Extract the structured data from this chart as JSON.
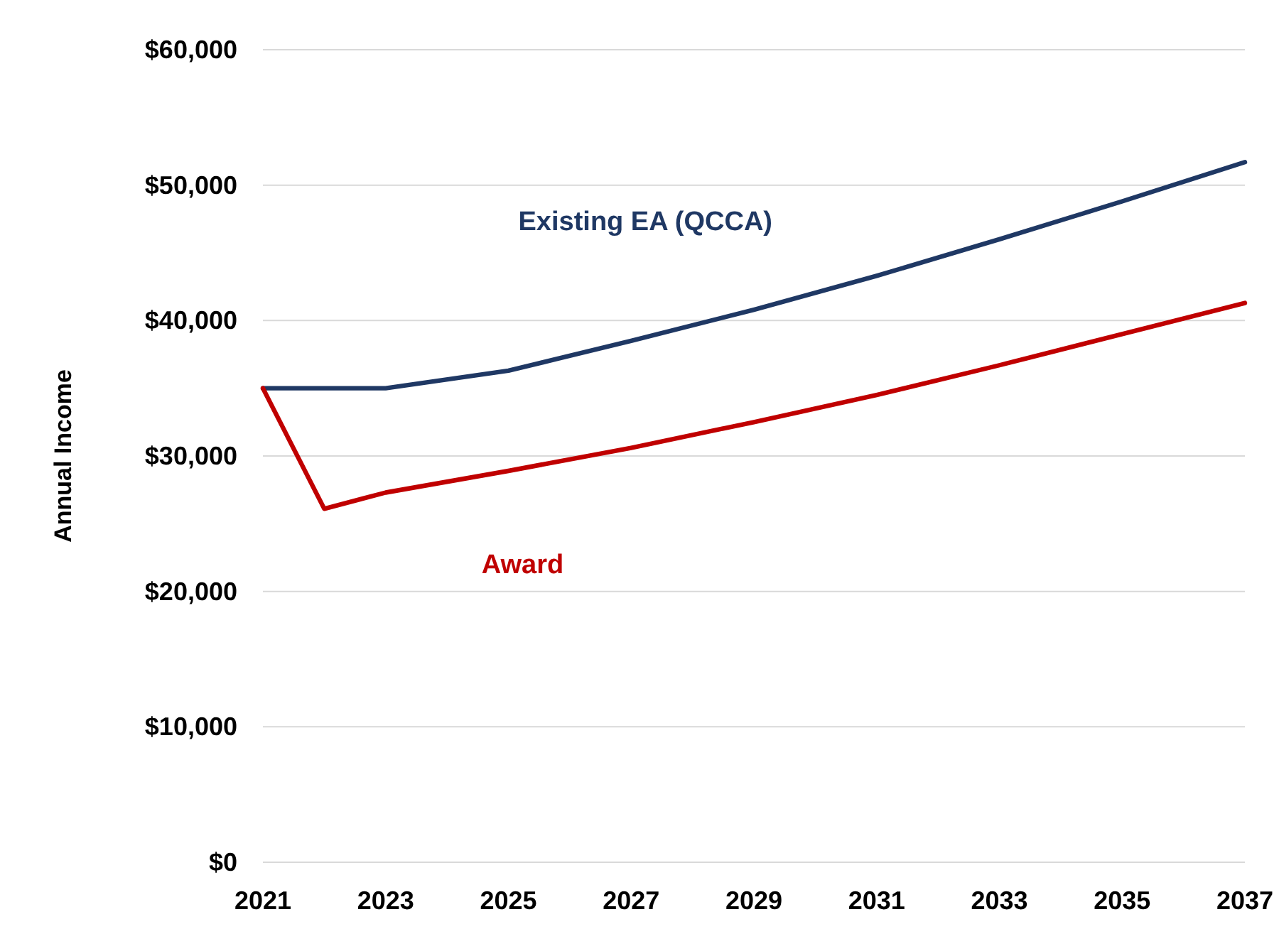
{
  "chart_data": {
    "type": "line",
    "ylabel": "Annual Income",
    "xlim": [
      2021,
      2037
    ],
    "xticks": [
      2021,
      2023,
      2025,
      2027,
      2029,
      2031,
      2033,
      2035,
      2037
    ],
    "ylim": [
      0,
      60000
    ],
    "yticks": [
      {
        "value": 0,
        "label": "$0"
      },
      {
        "value": 10000,
        "label": "$10,000"
      },
      {
        "value": 20000,
        "label": "$20,000"
      },
      {
        "value": 30000,
        "label": "$30,000"
      },
      {
        "value": 40000,
        "label": "$40,000"
      },
      {
        "value": 50000,
        "label": "$50,000"
      },
      {
        "value": 60000,
        "label": "$60,000"
      }
    ],
    "grid": "y",
    "series": [
      {
        "name": "Existing EA (QCCA)",
        "color": "#1f3864",
        "x": [
          2021,
          2023,
          2025,
          2027,
          2029,
          2031,
          2033,
          2035,
          2037
        ],
        "values": [
          35000,
          35000,
          36300,
          38500,
          40800,
          43300,
          46000,
          48800,
          51700
        ]
      },
      {
        "name": "Award",
        "color": "#c00000",
        "x": [
          2021,
          2022,
          2023,
          2025,
          2027,
          2029,
          2031,
          2033,
          2035,
          2037
        ],
        "values": [
          35000,
          26100,
          27300,
          28900,
          30600,
          32500,
          34500,
          36700,
          39000,
          41300
        ]
      }
    ]
  }
}
